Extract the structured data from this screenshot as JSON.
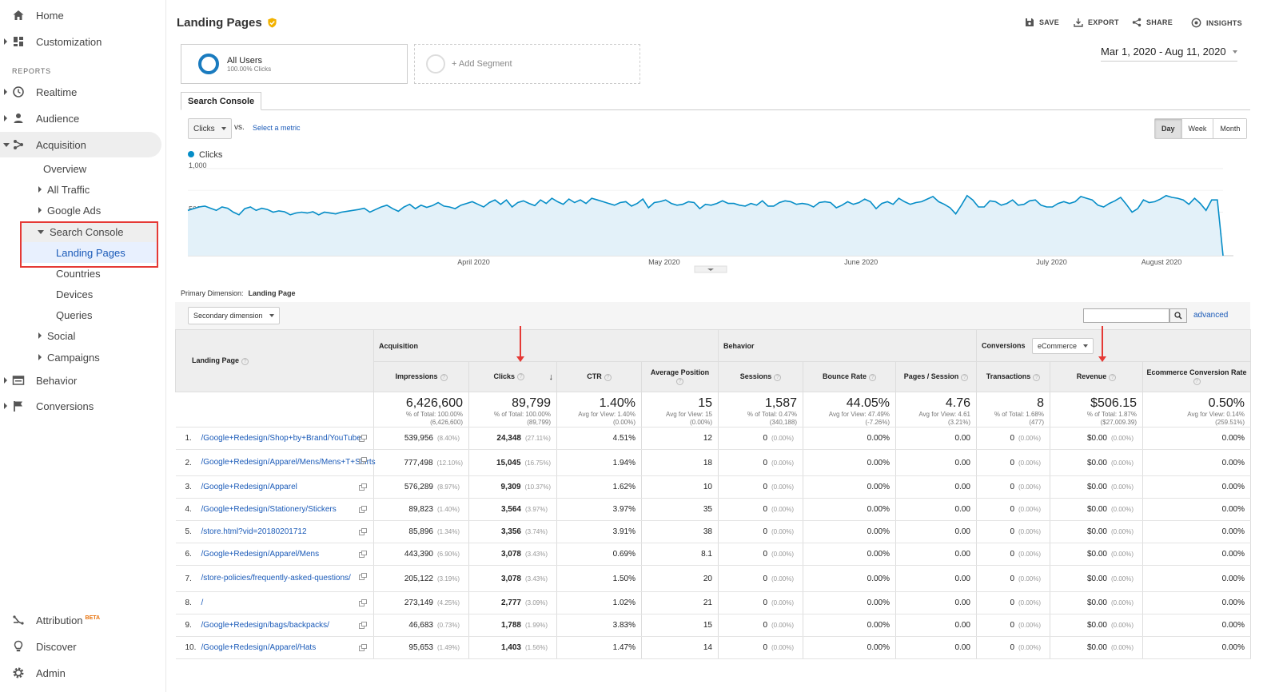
{
  "sidebar": {
    "home": "Home",
    "customization": "Customization",
    "reports_heading": "REPORTS",
    "realtime": "Realtime",
    "audience": "Audience",
    "acquisition": "Acquisition",
    "acq_items": {
      "overview": "Overview",
      "all_traffic": "All Traffic",
      "google_ads": "Google Ads",
      "search_console": "Search Console",
      "landing_pages": "Landing Pages",
      "countries": "Countries",
      "devices": "Devices",
      "queries": "Queries",
      "social": "Social",
      "campaigns": "Campaigns"
    },
    "behavior": "Behavior",
    "conversions": "Conversions",
    "attribution": "Attribution",
    "attribution_badge": "BETA",
    "discover": "Discover",
    "admin": "Admin"
  },
  "header": {
    "title": "Landing Pages",
    "save": "SAVE",
    "export": "EXPORT",
    "share": "SHARE",
    "insights": "INSIGHTS"
  },
  "segments": {
    "all_users": "All Users",
    "all_users_sub": "100.00% Clicks",
    "add_segment": "+ Add Segment"
  },
  "date_range": "Mar 1, 2020 - Aug 11, 2020",
  "tab": "Search Console",
  "chart_controls": {
    "metric": "Clicks",
    "vs": "vs.",
    "select_metric": "Select a metric",
    "day": "Day",
    "week": "Week",
    "month": "Month"
  },
  "chart_data": {
    "type": "area",
    "series": [
      {
        "name": "Clicks",
        "color": "#058dc7"
      }
    ],
    "y_tick_labels": [
      "1,000",
      "500"
    ],
    "ylim": [
      0,
      1000
    ],
    "x_labels": [
      "April 2020",
      "May 2020",
      "June 2020",
      "July 2020",
      "August 2020"
    ],
    "x_start": "2020-03-01",
    "x_end": "2020-08-11",
    "values": [
      520,
      540,
      560,
      570,
      545,
      520,
      560,
      545,
      500,
      470,
      540,
      560,
      520,
      545,
      530,
      500,
      515,
      505,
      470,
      490,
      500,
      490,
      505,
      470,
      500,
      490,
      480,
      500,
      510,
      520,
      530,
      545,
      500,
      530,
      560,
      580,
      540,
      510,
      560,
      590,
      540,
      580,
      555,
      575,
      610,
      570,
      560,
      540,
      580,
      600,
      620,
      590,
      560,
      610,
      640,
      590,
      640,
      560,
      610,
      630,
      600,
      575,
      640,
      600,
      660,
      620,
      590,
      650,
      610,
      640,
      600,
      660,
      640,
      620,
      600,
      580,
      610,
      620,
      570,
      600,
      650,
      550,
      610,
      620,
      640,
      600,
      580,
      590,
      620,
      610,
      540,
      590,
      580,
      600,
      630,
      600,
      600,
      580,
      570,
      600,
      580,
      630,
      570,
      570,
      610,
      630,
      620,
      590,
      600,
      590,
      560,
      610,
      620,
      610,
      550,
      580,
      620,
      590,
      610,
      650,
      620,
      540,
      600,
      620,
      590,
      660,
      620,
      590,
      610,
      620,
      650,
      680,
      620,
      590,
      550,
      480,
      580,
      690,
      640,
      560,
      560,
      630,
      620,
      580,
      600,
      640,
      580,
      590,
      630,
      640,
      580,
      560,
      560,
      600,
      620,
      600,
      620,
      680,
      660,
      640,
      580,
      560,
      600,
      630,
      670,
      590,
      500,
      540,
      640,
      610,
      620,
      650,
      690,
      670,
      660,
      640,
      590,
      660,
      600,
      520,
      640,
      640,
      0
    ],
    "title": "",
    "xlabel": "",
    "ylabel": ""
  },
  "primary_dim": {
    "label": "Primary Dimension:",
    "value": "Landing Page"
  },
  "secondary_dim": "Secondary dimension",
  "conversions_select": "eCommerce",
  "advanced": "advanced",
  "table": {
    "group_acquisition": "Acquisition",
    "group_behavior": "Behavior",
    "group_conversions": "Conversions",
    "columns": [
      "Landing Page",
      "Impressions",
      "Clicks",
      "CTR",
      "Average Position",
      "Sessions",
      "Bounce Rate",
      "Pages / Session",
      "Transactions",
      "Revenue",
      "Ecommerce Conversion Rate"
    ],
    "totals": [
      {
        "big": "6,426,600",
        "sub1": "% of Total: 100.00%",
        "sub2": "(6,426,600)"
      },
      {
        "big": "89,799",
        "sub1": "% of Total: 100.00%",
        "sub2": "(89,799)"
      },
      {
        "big": "1.40%",
        "sub1": "Avg for View: 1.40%",
        "sub2": "(0.00%)"
      },
      {
        "big": "15",
        "sub1": "Avg for View: 15",
        "sub2": "(0.00%)"
      },
      {
        "big": "1,587",
        "sub1": "% of Total: 0.47%",
        "sub2": "(340,188)"
      },
      {
        "big": "44.05%",
        "sub1": "Avg for View: 47.49%",
        "sub2": "(-7.26%)"
      },
      {
        "big": "4.76",
        "sub1": "Avg for View: 4.61",
        "sub2": "(3.21%)"
      },
      {
        "big": "8",
        "sub1": "% of Total: 1.68%",
        "sub2": "(477)"
      },
      {
        "big": "$506.15",
        "sub1": "% of Total: 1.87%",
        "sub2": "($27,009.39)"
      },
      {
        "big": "0.50%",
        "sub1": "Avg for View: 0.14%",
        "sub2": "(259.51%)"
      }
    ],
    "rows": [
      {
        "n": "1.",
        "page": "/Google+Redesign/Shop+by+Brand/YouTube",
        "imp": "539,956",
        "imp_p": "(8.40%)",
        "clicks": "24,348",
        "clicks_p": "(27.11%)",
        "ctr": "4.51%",
        "pos": "12",
        "sess": "0",
        "sess_p": "(0.00%)",
        "bounce": "0.00%",
        "pps": "0.00",
        "trans": "0",
        "trans_p": "(0.00%)",
        "rev": "$0.00",
        "rev_p": "(0.00%)",
        "ecr": "0.00%"
      },
      {
        "n": "2.",
        "page": "/Google+Redesign/Apparel/Mens/Mens+T+Shirts",
        "imp": "777,498",
        "imp_p": "(12.10%)",
        "clicks": "15,045",
        "clicks_p": "(16.75%)",
        "ctr": "1.94%",
        "pos": "18",
        "sess": "0",
        "sess_p": "(0.00%)",
        "bounce": "0.00%",
        "pps": "0.00",
        "trans": "0",
        "trans_p": "(0.00%)",
        "rev": "$0.00",
        "rev_p": "(0.00%)",
        "ecr": "0.00%"
      },
      {
        "n": "3.",
        "page": "/Google+Redesign/Apparel",
        "imp": "576,289",
        "imp_p": "(8.97%)",
        "clicks": "9,309",
        "clicks_p": "(10.37%)",
        "ctr": "1.62%",
        "pos": "10",
        "sess": "0",
        "sess_p": "(0.00%)",
        "bounce": "0.00%",
        "pps": "0.00",
        "trans": "0",
        "trans_p": "(0.00%)",
        "rev": "$0.00",
        "rev_p": "(0.00%)",
        "ecr": "0.00%"
      },
      {
        "n": "4.",
        "page": "/Google+Redesign/Stationery/Stickers",
        "imp": "89,823",
        "imp_p": "(1.40%)",
        "clicks": "3,564",
        "clicks_p": "(3.97%)",
        "ctr": "3.97%",
        "pos": "35",
        "sess": "0",
        "sess_p": "(0.00%)",
        "bounce": "0.00%",
        "pps": "0.00",
        "trans": "0",
        "trans_p": "(0.00%)",
        "rev": "$0.00",
        "rev_p": "(0.00%)",
        "ecr": "0.00%"
      },
      {
        "n": "5.",
        "page": "/store.html?vid=20180201712",
        "imp": "85,896",
        "imp_p": "(1.34%)",
        "clicks": "3,356",
        "clicks_p": "(3.74%)",
        "ctr": "3.91%",
        "pos": "38",
        "sess": "0",
        "sess_p": "(0.00%)",
        "bounce": "0.00%",
        "pps": "0.00",
        "trans": "0",
        "trans_p": "(0.00%)",
        "rev": "$0.00",
        "rev_p": "(0.00%)",
        "ecr": "0.00%"
      },
      {
        "n": "6.",
        "page": "/Google+Redesign/Apparel/Mens",
        "imp": "443,390",
        "imp_p": "(6.90%)",
        "clicks": "3,078",
        "clicks_p": "(3.43%)",
        "ctr": "0.69%",
        "pos": "8.1",
        "sess": "0",
        "sess_p": "(0.00%)",
        "bounce": "0.00%",
        "pps": "0.00",
        "trans": "0",
        "trans_p": "(0.00%)",
        "rev": "$0.00",
        "rev_p": "(0.00%)",
        "ecr": "0.00%"
      },
      {
        "n": "7.",
        "page": "/store-policies/frequently-asked-questions/",
        "imp": "205,122",
        "imp_p": "(3.19%)",
        "clicks": "3,078",
        "clicks_p": "(3.43%)",
        "ctr": "1.50%",
        "pos": "20",
        "sess": "0",
        "sess_p": "(0.00%)",
        "bounce": "0.00%",
        "pps": "0.00",
        "trans": "0",
        "trans_p": "(0.00%)",
        "rev": "$0.00",
        "rev_p": "(0.00%)",
        "ecr": "0.00%"
      },
      {
        "n": "8.",
        "page": "/",
        "imp": "273,149",
        "imp_p": "(4.25%)",
        "clicks": "2,777",
        "clicks_p": "(3.09%)",
        "ctr": "1.02%",
        "pos": "21",
        "sess": "0",
        "sess_p": "(0.00%)",
        "bounce": "0.00%",
        "pps": "0.00",
        "trans": "0",
        "trans_p": "(0.00%)",
        "rev": "$0.00",
        "rev_p": "(0.00%)",
        "ecr": "0.00%"
      },
      {
        "n": "9.",
        "page": "/Google+Redesign/bags/backpacks/",
        "imp": "46,683",
        "imp_p": "(0.73%)",
        "clicks": "1,788",
        "clicks_p": "(1.99%)",
        "ctr": "3.83%",
        "pos": "15",
        "sess": "0",
        "sess_p": "(0.00%)",
        "bounce": "0.00%",
        "pps": "0.00",
        "trans": "0",
        "trans_p": "(0.00%)",
        "rev": "$0.00",
        "rev_p": "(0.00%)",
        "ecr": "0.00%"
      },
      {
        "n": "10.",
        "page": "/Google+Redesign/Apparel/Hats",
        "imp": "95,653",
        "imp_p": "(1.49%)",
        "clicks": "1,403",
        "clicks_p": "(1.56%)",
        "ctr": "1.47%",
        "pos": "14",
        "sess": "0",
        "sess_p": "(0.00%)",
        "bounce": "0.00%",
        "pps": "0.00",
        "trans": "0",
        "trans_p": "(0.00%)",
        "rev": "$0.00",
        "rev_p": "(0.00%)",
        "ecr": "0.00%"
      }
    ]
  }
}
